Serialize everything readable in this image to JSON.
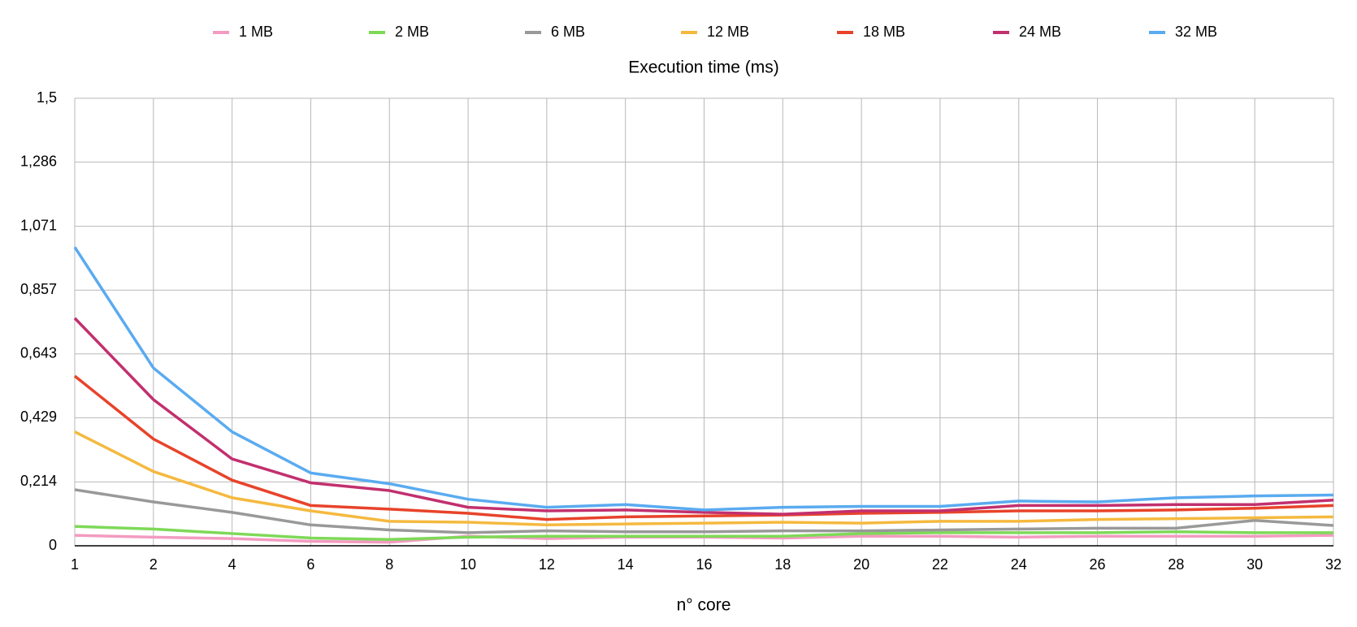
{
  "chart_data": {
    "type": "line",
    "title": "Execution time (ms)",
    "x_label": "n° core",
    "categories": [
      "1",
      "2",
      "4",
      "6",
      "8",
      "10",
      "12",
      "14",
      "16",
      "18",
      "20",
      "22",
      "24",
      "26",
      "28",
      "30",
      "32"
    ],
    "ylim": [
      0,
      1.5
    ],
    "yticks": [
      0,
      {
        "value": 0.214,
        "label": "0,214"
      },
      {
        "value": 0.429,
        "label": "0,429"
      },
      {
        "value": 0.643,
        "label": "0,643"
      },
      {
        "value": 0.857,
        "label": "0,857"
      },
      {
        "value": 1.071,
        "label": "1,071"
      },
      {
        "value": 1.286,
        "label": "1,286"
      },
      {
        "value": 1.5,
        "label": "1,5"
      }
    ],
    "grid": true,
    "legend": "top",
    "series": [
      {
        "name": "1 MB",
        "color": "#f39bc0",
        "values": [
          0.035,
          0.029,
          0.024,
          0.015,
          0.012,
          0.032,
          0.024,
          0.029,
          0.029,
          0.026,
          0.032,
          0.032,
          0.029,
          0.032,
          0.032,
          0.032,
          0.035
        ]
      },
      {
        "name": "2 MB",
        "color": "#7ed957",
        "values": [
          0.065,
          0.056,
          0.041,
          0.026,
          0.021,
          0.029,
          0.032,
          0.032,
          0.032,
          0.032,
          0.041,
          0.044,
          0.044,
          0.044,
          0.047,
          0.044,
          0.044
        ]
      },
      {
        "name": "6 MB",
        "color": "#999999",
        "values": [
          0.188,
          0.147,
          0.112,
          0.07,
          0.053,
          0.044,
          0.05,
          0.047,
          0.047,
          0.05,
          0.05,
          0.053,
          0.056,
          0.059,
          0.059,
          0.085,
          0.068
        ]
      },
      {
        "name": "12 MB",
        "color": "#f5b93f",
        "values": [
          0.382,
          0.249,
          0.161,
          0.117,
          0.082,
          0.079,
          0.07,
          0.073,
          0.076,
          0.079,
          0.076,
          0.082,
          0.082,
          0.088,
          0.091,
          0.094,
          0.097
        ]
      },
      {
        "name": "18 MB",
        "color": "#e8432a",
        "values": [
          0.569,
          0.358,
          0.22,
          0.135,
          0.123,
          0.109,
          0.088,
          0.097,
          0.1,
          0.103,
          0.109,
          0.112,
          0.117,
          0.117,
          0.12,
          0.126,
          0.135
        ]
      },
      {
        "name": "24 MB",
        "color": "#c2306e",
        "values": [
          0.763,
          0.49,
          0.291,
          0.211,
          0.185,
          0.129,
          0.117,
          0.12,
          0.112,
          0.106,
          0.117,
          0.117,
          0.135,
          0.135,
          0.138,
          0.138,
          0.153
        ]
      },
      {
        "name": "32 MB",
        "color": "#5aabf0",
        "values": [
          1.001,
          0.596,
          0.382,
          0.244,
          0.208,
          0.156,
          0.129,
          0.138,
          0.12,
          0.129,
          0.132,
          0.132,
          0.15,
          0.147,
          0.161,
          0.167,
          0.17
        ]
      }
    ]
  }
}
